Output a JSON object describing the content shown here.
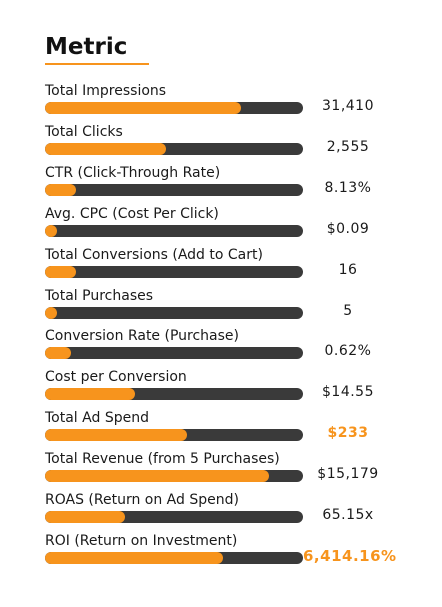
{
  "header": {
    "title": "Metric"
  },
  "colors": {
    "accent": "#f7941d",
    "track": "#3a3a3a",
    "text": "#1a1a1a"
  },
  "chart_data": {
    "type": "bar",
    "orientation": "horizontal",
    "title": "Metric",
    "categories": [
      "Total Impressions",
      "Total Clicks",
      "CTR (Click-Through Rate)",
      "Avg. CPC (Cost Per Click)",
      "Total Conversions (Add to Cart)",
      "Total Purchases",
      "Conversion Rate (Purchase)",
      "Cost per Conversion",
      "Total Ad Spend",
      "Total Revenue (from 5 Purchases)",
      "ROAS (Return on Ad Spend)",
      "ROI (Return on Investment)"
    ],
    "value_labels": [
      "31,410",
      "2,555",
      "8.13%",
      "$0.09",
      "16",
      "5",
      "0.62%",
      "$14.55",
      "$233",
      "$15,179",
      "65.15x",
      "6,414.16%"
    ],
    "fill_fraction": [
      0.76,
      0.47,
      0.12,
      0.04,
      0.12,
      0.04,
      0.1,
      0.35,
      0.55,
      0.87,
      0.31,
      0.69
    ],
    "highlighted": [
      false,
      false,
      false,
      false,
      false,
      false,
      false,
      false,
      true,
      false,
      false,
      true
    ]
  }
}
